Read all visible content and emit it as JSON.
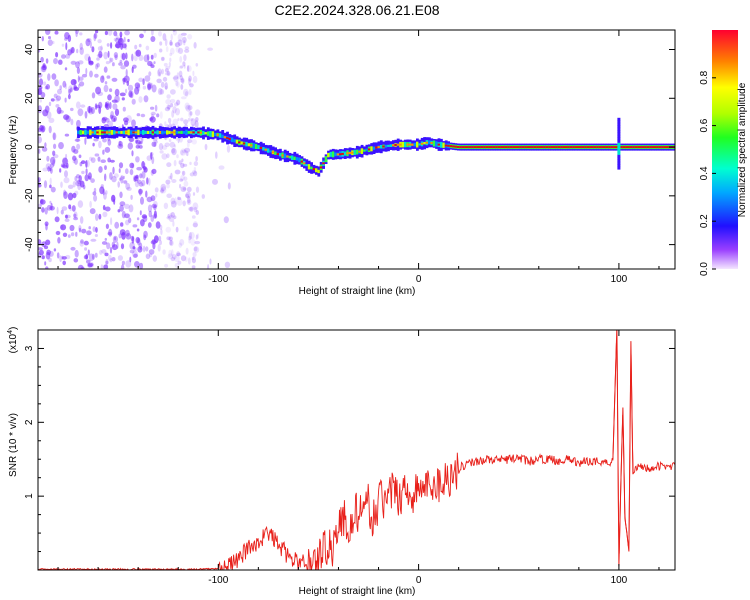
{
  "title": "C2E2.2024.328.06.21.E08",
  "colors": {
    "snr_line": "#e8201a",
    "frame": "#000000",
    "scatter": "#7a2cff"
  },
  "chart_data": [
    {
      "type": "heatmap",
      "xlabel": "Height of straight line (km)",
      "ylabel": "Frequency (Hz)",
      "xlim": [
        -190,
        128
      ],
      "ylim": [
        -50,
        48
      ],
      "x_ticks": [
        {
          "value": -100,
          "label": "-100"
        },
        {
          "value": 0,
          "label": "0"
        },
        {
          "value": 100,
          "label": "100"
        }
      ],
      "y_ticks": [
        {
          "value": -40,
          "label": "-40"
        },
        {
          "value": -20,
          "label": "-20"
        },
        {
          "value": 0,
          "label": "0"
        },
        {
          "value": 20,
          "label": "20"
        },
        {
          "value": 40,
          "label": "40"
        }
      ],
      "colorbar": {
        "label": "Normalized spectral amplitude",
        "range": [
          0,
          1
        ],
        "ticks": [
          {
            "value": 0.0,
            "label": "0.0"
          },
          {
            "value": 0.2,
            "label": "0.2"
          },
          {
            "value": 0.4,
            "label": "0.4"
          },
          {
            "value": 0.6,
            "label": "0.6"
          },
          {
            "value": 0.8,
            "label": "0.8"
          }
        ]
      },
      "ridge": {
        "x": [
          -165,
          -150,
          -130,
          -110,
          -100,
          -90,
          -80,
          -70,
          -60,
          -55,
          -50,
          -45,
          -40,
          -30,
          -20,
          -10,
          0,
          5,
          10,
          20,
          40,
          60,
          80,
          95,
          100,
          105,
          128
        ],
        "y": [
          6,
          6,
          6,
          6,
          5,
          2,
          0,
          -3,
          -5,
          -8,
          -10,
          -3,
          -3,
          -2,
          0,
          1,
          1,
          2,
          1,
          0,
          0,
          0,
          0,
          0,
          0,
          0,
          0
        ]
      }
    },
    {
      "type": "line",
      "xlabel": "Height of straight line (km)",
      "ylabel": "SNR (10 * v/v)",
      "scale_label": "(x10",
      "scale_exponent": "4",
      "xlim": [
        -190,
        128
      ],
      "ylim": [
        0,
        3.25
      ],
      "x_ticks": [
        {
          "value": -100,
          "label": "-100"
        },
        {
          "value": 0,
          "label": "0"
        },
        {
          "value": 100,
          "label": "100"
        }
      ],
      "y_ticks": [
        {
          "value": 1,
          "label": "1"
        },
        {
          "value": 2,
          "label": "2"
        },
        {
          "value": 3,
          "label": "3"
        }
      ],
      "series": [
        {
          "x": [
            -190,
            -150,
            -110,
            -100,
            -96,
            -92,
            -88,
            -85,
            -82,
            -79,
            -76,
            -73,
            -70,
            -67,
            -64,
            -61,
            -58,
            -55,
            -52,
            -49,
            -46,
            -43,
            -40,
            -37,
            -34,
            -31,
            -28,
            -25,
            -22,
            -19,
            -16,
            -13,
            -10,
            -7,
            -4,
            -1,
            2,
            5,
            8,
            11,
            14,
            17,
            20,
            25,
            30,
            35,
            40,
            45,
            50,
            55,
            60,
            65,
            70,
            75,
            80,
            85,
            90,
            95,
            97,
            99,
            100,
            101,
            102,
            103,
            104,
            105,
            106,
            107,
            110,
            115,
            120,
            128
          ],
          "y": [
            0.01,
            0.01,
            0.01,
            0.02,
            0.05,
            0.1,
            0.2,
            0.3,
            0.35,
            0.4,
            0.5,
            0.45,
            0.35,
            0.25,
            0.15,
            0.12,
            0.1,
            0.08,
            0.1,
            0.2,
            0.35,
            0.3,
            0.6,
            0.7,
            0.55,
            0.8,
            0.7,
            0.9,
            0.65,
            1.05,
            0.85,
            1.1,
            0.95,
            1.15,
            1.0,
            1.05,
            1.15,
            1.1,
            1.2,
            1.15,
            1.25,
            1.3,
            1.38,
            1.45,
            1.48,
            1.5,
            1.48,
            1.5,
            1.52,
            1.47,
            1.5,
            1.5,
            1.48,
            1.5,
            1.45,
            1.48,
            1.47,
            1.45,
            1.5,
            3.3,
            0.05,
            1.2,
            2.2,
            0.7,
            0.5,
            0.25,
            3.1,
            1.3,
            1.4,
            1.38,
            1.4,
            1.42
          ]
        }
      ]
    }
  ]
}
